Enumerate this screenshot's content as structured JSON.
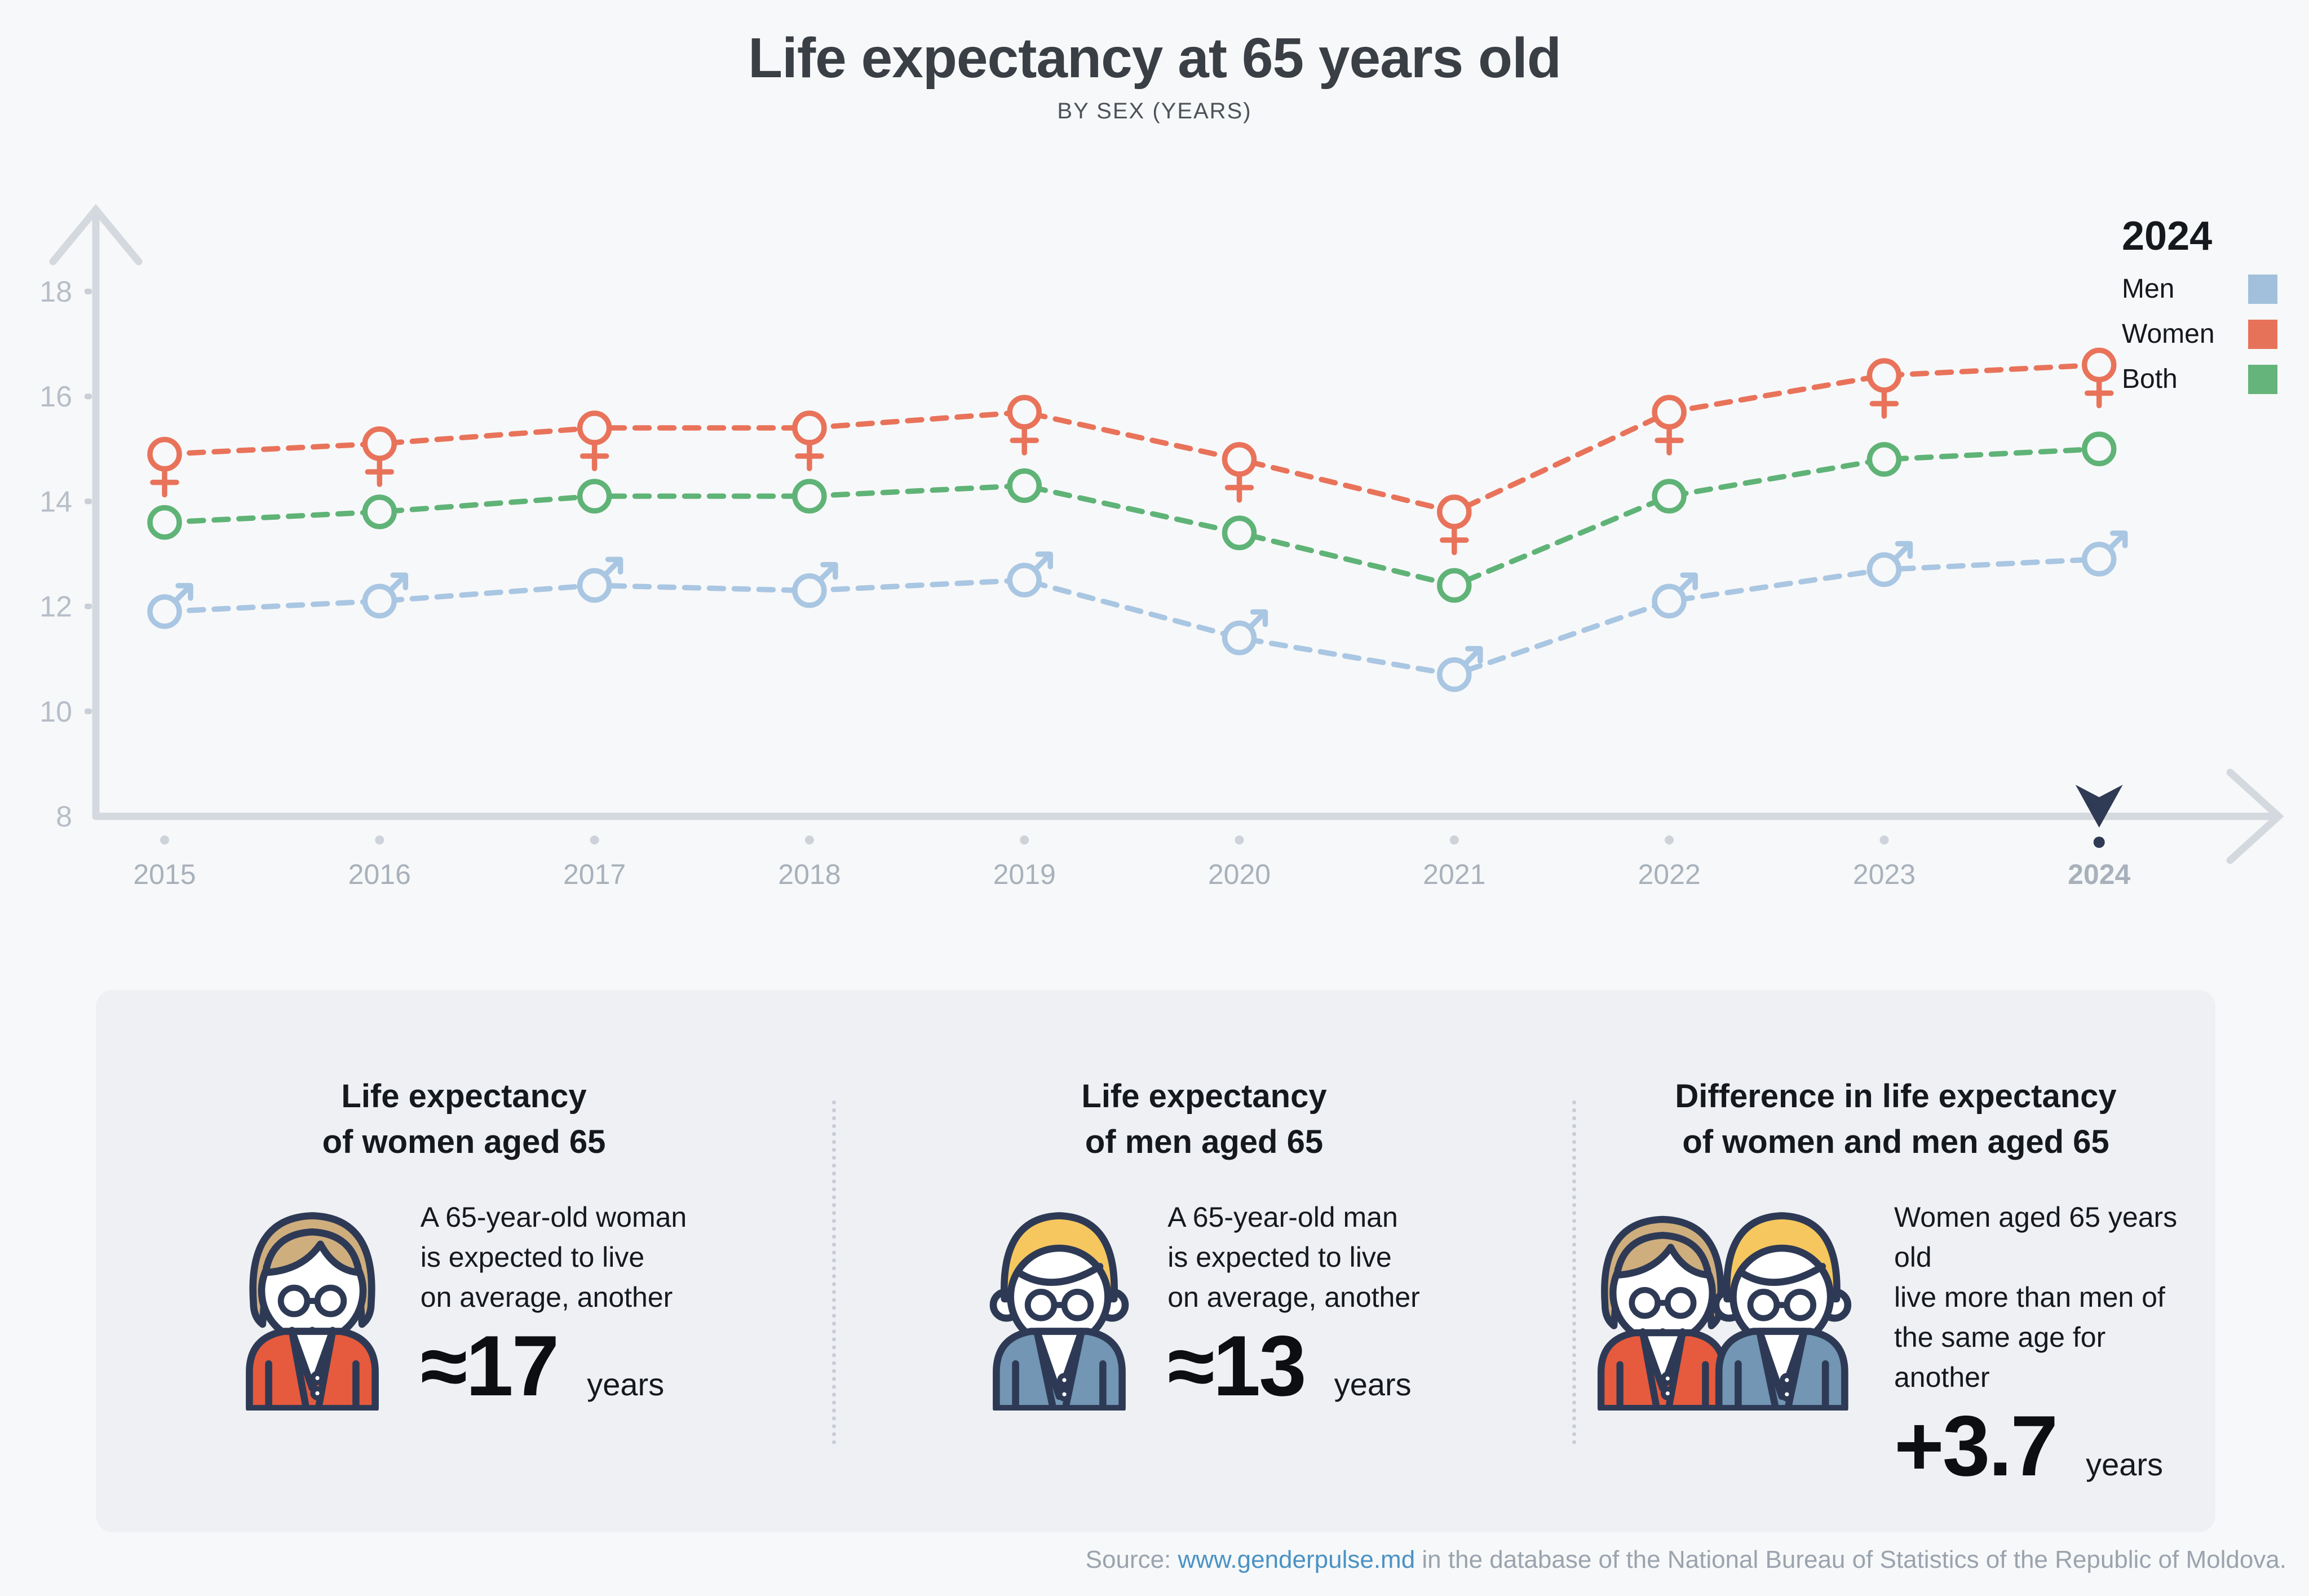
{
  "header": {
    "title": "Life expectancy at 65 years old",
    "subtitle": "BY SEX (YEARS)"
  },
  "legend": {
    "year": "2024",
    "items": [
      {
        "label": "Men",
        "color": "#a2c0dc"
      },
      {
        "label": "Women",
        "color": "#e7725a"
      },
      {
        "label": "Both",
        "color": "#65b47b"
      }
    ]
  },
  "chart_data": {
    "type": "line",
    "title": "Life expectancy at 65 years old",
    "subtitle": "BY SEX (YEARS)",
    "x": [
      "2015",
      "2016",
      "2017",
      "2018",
      "2019",
      "2020",
      "2021",
      "2022",
      "2023",
      "2024"
    ],
    "series": [
      {
        "name": "Women",
        "marker": "female",
        "color": "#e8735a",
        "values": [
          14.9,
          15.1,
          15.4,
          15.4,
          15.7,
          14.8,
          13.8,
          15.7,
          16.4,
          16.6
        ]
      },
      {
        "name": "Both",
        "marker": "circle",
        "color": "#5fb377",
        "values": [
          13.6,
          13.8,
          14.1,
          14.1,
          14.3,
          13.4,
          12.4,
          14.1,
          14.8,
          15.0
        ]
      },
      {
        "name": "Men",
        "marker": "male",
        "color": "#a9c6e2",
        "values": [
          11.9,
          12.1,
          12.4,
          12.3,
          12.5,
          11.4,
          10.7,
          12.1,
          12.7,
          12.9
        ]
      }
    ],
    "ylim": [
      8,
      18
    ],
    "yticks": [
      8,
      10,
      12,
      14,
      16,
      18
    ],
    "xlabel": "",
    "ylabel": "",
    "grid": false,
    "line_style": "dashed",
    "legend_position": "top-right",
    "selected_x": "2024"
  },
  "cards": [
    {
      "title": [
        "Life expectancy",
        "of women aged 65"
      ],
      "lines": [
        "A 65-year-old woman",
        "is expected to live",
        "on average, another"
      ],
      "value": "≈17",
      "unit": "years"
    },
    {
      "title": [
        "Life expectancy",
        "of men aged 65"
      ],
      "lines": [
        "A 65-year-old man",
        "is expected to live",
        "on average, another"
      ],
      "value": "≈13",
      "unit": "years"
    },
    {
      "title": [
        "Difference in life expectancy",
        "of women and men aged 65"
      ],
      "lines": [
        "Women aged 65 years old",
        "live more than men of",
        "the same age for another"
      ],
      "value": "+3.7",
      "unit": "years"
    }
  ],
  "source": {
    "prefix": "Source: ",
    "link": "www.genderpulse.md",
    "suffix": " in the database of the National Bureau of Statistics of the Republic of Moldova."
  },
  "colors": {
    "background": "#f7f8f9",
    "panel": "#eef0f3",
    "axis": "#d4d9df",
    "tick_label": "#b6bec8",
    "year_label": "#a8b1bb",
    "selected_year": "#39424f",
    "tick_dot": "#cdd3d9",
    "tick_dash": "#c9cfd6",
    "pointer_navy": "#2f3a55",
    "title": "#3a3f46",
    "subtitle": "#4d525a",
    "text": "#15181d",
    "divider": "#c7cdd8",
    "source_gray": "#9aa3ae",
    "link_blue": "#4a92c5",
    "navy": "#2e3a55",
    "hair_tan": "#cfae7e",
    "hair_blond": "#f6c75f",
    "cardigan_orange": "#e65a3d",
    "suit_blue": "#7296b4",
    "face": "#ffffff"
  }
}
